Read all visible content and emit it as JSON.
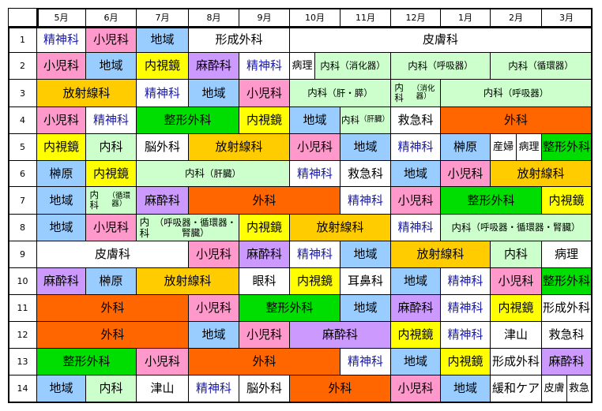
{
  "colors": {
    "pink": "#ff99cc",
    "blue": "#99ccff",
    "yellow": "#ffcc00",
    "lightyellow": "#ffff00",
    "green": "#00dd00",
    "orange": "#ff6600",
    "lightgreen": "#ccffcc",
    "lavender": "#cc99ff",
    "white": "#ffffff"
  },
  "months": [
    "5月",
    "6月",
    "7月",
    "8月",
    "9月",
    "10月",
    "11月",
    "12月",
    "1月",
    "2月",
    "3月"
  ],
  "rows": [
    {
      "num": "1",
      "cells": [
        {
          "label": "精神科",
          "color": "white",
          "blue": true
        },
        {
          "label": "小児科",
          "color": "pink"
        },
        {
          "label": "地域",
          "color": "blue"
        },
        {
          "label": "形成外科",
          "color": "white"
        },
        {
          "label": "皮膚科",
          "color": "white"
        }
      ]
    },
    {
      "num": "2",
      "cells": [
        {
          "label": "小児科",
          "color": "pink"
        },
        {
          "label": "地域",
          "color": "blue"
        },
        {
          "label": "内視鏡",
          "color": "lightyellow"
        },
        {
          "label": "麻酔科",
          "color": "lavender"
        },
        {
          "label": "精神科",
          "color": "white",
          "blue": true
        },
        {
          "label": "病理",
          "color": "white"
        },
        {
          "label": "内科\n（消化器）",
          "color": "lightgreen"
        },
        {
          "label": "内科\n（呼吸器）",
          "color": "lightgreen"
        },
        {
          "label": "内科\n（循環器）",
          "color": "lightgreen"
        }
      ]
    },
    {
      "num": "3",
      "cells": [
        {
          "label": "放射線科",
          "color": "yellow"
        },
        {
          "label": "精神科",
          "color": "white",
          "blue": true
        },
        {
          "label": "地域",
          "color": "blue"
        },
        {
          "label": "小児科",
          "color": "pink"
        },
        {
          "label": "内科\n（肝・膵）",
          "color": "lightgreen"
        },
        {
          "label": "内科\n（消化器）",
          "color": "lightgreen"
        },
        {
          "label": "内科\n（呼吸器）",
          "color": "lightgreen"
        }
      ]
    },
    {
      "num": "4",
      "cells": [
        {
          "label": "小児科",
          "color": "pink"
        },
        {
          "label": "精神科",
          "color": "white",
          "blue": true
        },
        {
          "label": "整形外科",
          "color": "green"
        },
        {
          "label": "内視鏡",
          "color": "lightyellow"
        },
        {
          "label": "地域",
          "color": "blue"
        },
        {
          "label": "内科\n（肝臓）",
          "color": "lightgreen"
        },
        {
          "label": "救急科",
          "color": "white"
        },
        {
          "label": "外科",
          "color": "orange"
        }
      ]
    },
    {
      "num": "5",
      "cells": [
        {
          "label": "内視鏡",
          "color": "lightyellow"
        },
        {
          "label": "内科",
          "color": "lightgreen"
        },
        {
          "label": "脳外科",
          "color": "white"
        },
        {
          "label": "放射線科",
          "color": "yellow"
        },
        {
          "label": "小児科",
          "color": "pink"
        },
        {
          "label": "地域",
          "color": "blue"
        },
        {
          "label": "精神科",
          "color": "white",
          "blue": true
        },
        {
          "label": "榊原",
          "color": "blue"
        },
        {
          "label": "産婦",
          "color": "white"
        },
        {
          "label": "病理",
          "color": "white"
        },
        {
          "label": "整形外科",
          "color": "green"
        }
      ]
    },
    {
      "num": "6",
      "cells": [
        {
          "label": "榊原",
          "color": "blue"
        },
        {
          "label": "内視鏡",
          "color": "lightyellow"
        },
        {
          "label": "内科\n（肝臓）",
          "color": "lightgreen"
        },
        {
          "label": "精神科",
          "color": "white",
          "blue": true
        },
        {
          "label": "救急科",
          "color": "white"
        },
        {
          "label": "地域",
          "color": "blue"
        },
        {
          "label": "小児科",
          "color": "pink"
        },
        {
          "label": "放射線科",
          "color": "yellow"
        }
      ]
    },
    {
      "num": "7",
      "cells": [
        {
          "label": "地域",
          "color": "blue"
        },
        {
          "label": "内科\n（循環器）",
          "color": "lightgreen"
        },
        {
          "label": "麻酔科",
          "color": "lavender"
        },
        {
          "label": "外科",
          "color": "orange"
        },
        {
          "label": "精神科",
          "color": "white",
          "blue": true
        },
        {
          "label": "小児科",
          "color": "pink"
        },
        {
          "label": "整形外科",
          "color": "green"
        },
        {
          "label": "内視鏡",
          "color": "lightyellow"
        }
      ]
    },
    {
      "num": "8",
      "cells": [
        {
          "label": "地域",
          "color": "blue"
        },
        {
          "label": "小児科",
          "color": "pink"
        },
        {
          "label": "内科\n（呼吸器・循環器・腎臓）",
          "color": "lightgreen"
        },
        {
          "label": "内視鏡",
          "color": "lightyellow"
        },
        {
          "label": "放射線科",
          "color": "yellow"
        },
        {
          "label": "精神科",
          "color": "white",
          "blue": true
        },
        {
          "label": "内科\n（呼吸器・循環器・腎臓）",
          "color": "lightgreen"
        }
      ]
    },
    {
      "num": "9",
      "cells": [
        {
          "label": "皮膚科",
          "color": "white"
        },
        {
          "label": "小児科",
          "color": "pink"
        },
        {
          "label": "麻酔科",
          "color": "lavender"
        },
        {
          "label": "精神科",
          "color": "white",
          "blue": true
        },
        {
          "label": "地域",
          "color": "blue"
        },
        {
          "label": "放射線科",
          "color": "yellow"
        },
        {
          "label": "内科",
          "color": "lightgreen"
        },
        {
          "label": "病理",
          "color": "white"
        }
      ]
    },
    {
      "num": "10",
      "cells": [
        {
          "label": "麻酔科",
          "color": "lavender"
        },
        {
          "label": "榊原",
          "color": "blue"
        },
        {
          "label": "放射線科",
          "color": "yellow"
        },
        {
          "label": "眼科",
          "color": "white"
        },
        {
          "label": "内視鏡",
          "color": "lightyellow"
        },
        {
          "label": "耳鼻科",
          "color": "white"
        },
        {
          "label": "地域",
          "color": "blue"
        },
        {
          "label": "精神科",
          "color": "white",
          "blue": true
        },
        {
          "label": "小児科",
          "color": "pink"
        },
        {
          "label": "整形外科",
          "color": "green"
        }
      ]
    },
    {
      "num": "11",
      "cells": [
        {
          "label": "外科",
          "color": "orange"
        },
        {
          "label": "小児科",
          "color": "pink"
        },
        {
          "label": "整形外科",
          "color": "green"
        },
        {
          "label": "地域",
          "color": "blue"
        },
        {
          "label": "麻酔科",
          "color": "lavender"
        },
        {
          "label": "精神科",
          "color": "white",
          "blue": true
        },
        {
          "label": "内視鏡",
          "color": "lightyellow"
        },
        {
          "label": "形成外科",
          "color": "white"
        }
      ]
    },
    {
      "num": "12",
      "cells": [
        {
          "label": "外科",
          "color": "orange"
        },
        {
          "label": "地域",
          "color": "blue"
        },
        {
          "label": "小児科",
          "color": "pink"
        },
        {
          "label": "麻酔科",
          "color": "lavender"
        },
        {
          "label": "内視鏡",
          "color": "lightyellow"
        },
        {
          "label": "精神科",
          "color": "white",
          "blue": true
        },
        {
          "label": "津山",
          "color": "white"
        },
        {
          "label": "救急科",
          "color": "white"
        }
      ]
    },
    {
      "num": "13",
      "cells": [
        {
          "label": "整形外科",
          "color": "green"
        },
        {
          "label": "小児科",
          "color": "pink"
        },
        {
          "label": "外科",
          "color": "orange"
        },
        {
          "label": "精神科",
          "color": "white",
          "blue": true
        },
        {
          "label": "地域",
          "color": "blue"
        },
        {
          "label": "内視鏡",
          "color": "lightyellow"
        },
        {
          "label": "形成外科",
          "color": "white"
        },
        {
          "label": "麻酔科",
          "color": "lavender"
        }
      ]
    },
    {
      "num": "14",
      "cells": [
        {
          "label": "地域",
          "color": "blue"
        },
        {
          "label": "内科",
          "color": "lightgreen"
        },
        {
          "label": "津山",
          "color": "white"
        },
        {
          "label": "精神科",
          "color": "white",
          "blue": true
        },
        {
          "label": "脳外科",
          "color": "white"
        },
        {
          "label": "外科",
          "color": "orange"
        },
        {
          "label": "小児科",
          "color": "pink"
        },
        {
          "label": "地域",
          "color": "blue"
        },
        {
          "label": "緩和ケア",
          "color": "white"
        },
        {
          "label": "皮膚",
          "color": "white"
        },
        {
          "label": "救急",
          "color": "white"
        }
      ]
    }
  ]
}
